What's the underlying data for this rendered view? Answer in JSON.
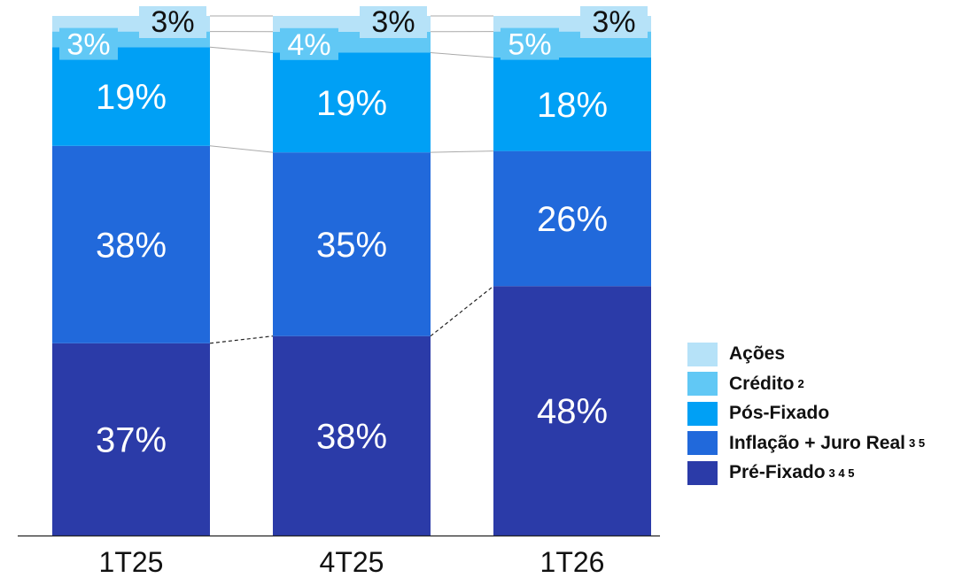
{
  "chart_data": {
    "type": "bar",
    "stacked": true,
    "normalized": true,
    "categories": [
      "1T25",
      "4T25",
      "1T26"
    ],
    "series": [
      {
        "name": "Pré-Fixado",
        "values": [
          37,
          38,
          48
        ],
        "labels": [
          "37%",
          "38%",
          "48%"
        ],
        "color": "#2b3ba8"
      },
      {
        "name": "Inflação + Juro Real",
        "values": [
          38,
          35,
          26
        ],
        "labels": [
          "38%",
          "35%",
          "26%"
        ],
        "color": "#2169db"
      },
      {
        "name": "Pós-Fixado",
        "values": [
          19,
          19,
          18
        ],
        "labels": [
          "19%",
          "19%",
          "18%"
        ],
        "color": "#00a0f5"
      },
      {
        "name": "Crédito",
        "values": [
          3,
          4,
          5
        ],
        "labels": [
          "3%",
          "4%",
          "5%"
        ],
        "color": "#61c8f5"
      },
      {
        "name": "Ações",
        "values": [
          3,
          3,
          3
        ],
        "labels": [
          "3%",
          "3%",
          "3%"
        ],
        "color": "#b6e2f8"
      }
    ],
    "ylim": [
      0,
      100
    ],
    "legend_position": "bottom-right",
    "grid": false
  },
  "legend": {
    "items": [
      {
        "label": "Ações",
        "sup": "",
        "color": "#b6e2f8"
      },
      {
        "label": "Crédito",
        "sup": "2",
        "color": "#61c8f5"
      },
      {
        "label": "Pós-Fixado",
        "sup": "",
        "color": "#00a0f5"
      },
      {
        "label": "Inflação + Juro Real",
        "sup": "3 5",
        "color": "#2169db"
      },
      {
        "label": "Pré-Fixado",
        "sup": "3 4 5",
        "color": "#2b3ba8"
      }
    ]
  }
}
